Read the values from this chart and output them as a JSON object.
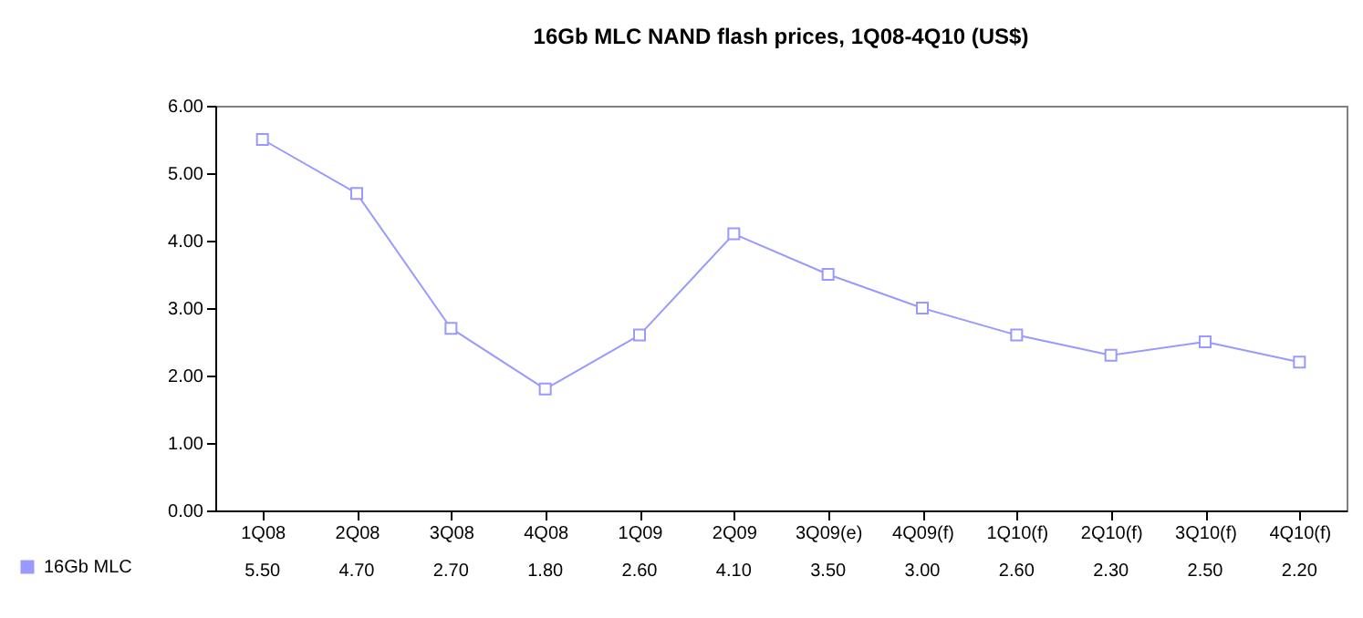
{
  "chart_data": {
    "type": "line",
    "title": "16Gb MLC NAND flash prices, 1Q08-4Q10 (US$)",
    "categories": [
      "1Q08",
      "2Q08",
      "3Q08",
      "4Q08",
      "1Q09",
      "2Q09",
      "3Q09(e)",
      "4Q09(f)",
      "1Q10(f)",
      "2Q10(f)",
      "3Q10(f)",
      "4Q10(f)"
    ],
    "series": [
      {
        "name": "16Gb MLC",
        "color": "#9999ff",
        "values": [
          5.5,
          4.7,
          2.7,
          1.8,
          2.6,
          4.1,
          3.5,
          3.0,
          2.6,
          2.3,
          2.5,
          2.2
        ],
        "value_labels": [
          "5.50",
          "4.70",
          "2.70",
          "1.80",
          "2.60",
          "4.10",
          "3.50",
          "3.00",
          "2.60",
          "2.30",
          "2.50",
          "2.20"
        ]
      }
    ],
    "ylim": [
      0,
      6
    ],
    "yticks": [
      {
        "value": 0,
        "label": "0.00"
      },
      {
        "value": 1,
        "label": "1.00"
      },
      {
        "value": 2,
        "label": "2.00"
      },
      {
        "value": 3,
        "label": "3.00"
      },
      {
        "value": 4,
        "label": "4.00"
      },
      {
        "value": 5,
        "label": "5.00"
      },
      {
        "value": 6,
        "label": "6.00"
      }
    ],
    "grid": false,
    "legend": "bottom left",
    "marker": "square",
    "line_style": "solid"
  }
}
